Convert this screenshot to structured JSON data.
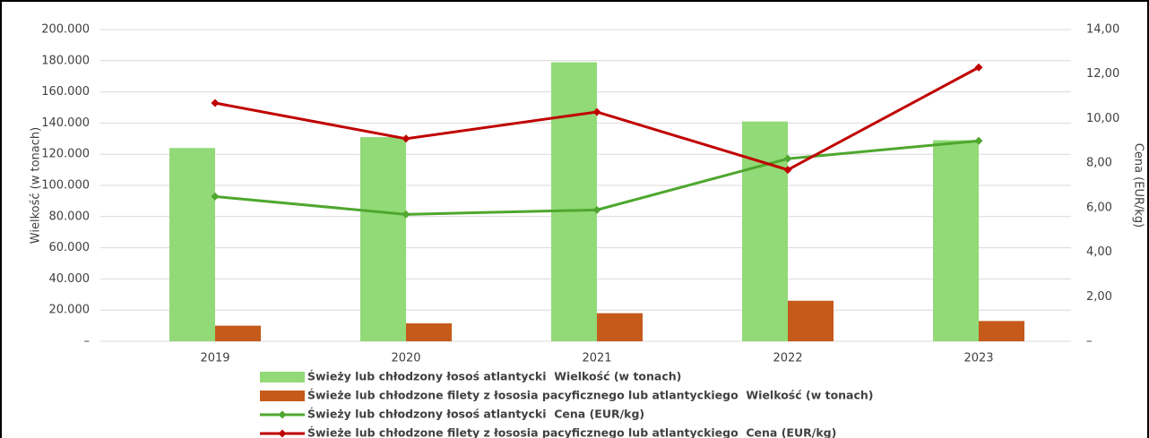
{
  "chart_data": {
    "type": "combo",
    "categories": [
      "2019",
      "2020",
      "2021",
      "2022",
      "2023"
    ],
    "series": [
      {
        "name": "Świeży lub chłodzony łosoś atlantycki  Wielkość (w tonach)",
        "type": "bar",
        "color": "#92d977",
        "values": [
          124000,
          131000,
          179000,
          141000,
          129000
        ]
      },
      {
        "name": "Świeże lub chłodzone filety z łososia pacyficznego lub atlantyckiego  Wielkość (w tonach)",
        "type": "bar",
        "color": "#c55a1a",
        "values": [
          10000,
          11500,
          18000,
          26000,
          13000
        ]
      },
      {
        "name": "Świeży lub chłodzony łosoś atlantycki  Cena (EUR/kg)",
        "type": "line",
        "axis": "y2",
        "color": "#4ea72e",
        "values": [
          6.5,
          5.7,
          5.9,
          8.2,
          9.0
        ]
      },
      {
        "name": "Świeże lub chłodzone filety z łososia pacyficznego lub atlantyckiego  Cena (EUR/kg)",
        "type": "line",
        "axis": "y2",
        "color": "#c00000",
        "values": [
          10.7,
          9.1,
          10.3,
          7.7,
          12.3
        ]
      }
    ],
    "ylabel": "Wielkość (w tonach)",
    "y2label": "Cena (EUR/kg)",
    "ylim": [
      0,
      200000
    ],
    "yticks": [
      {
        "value": 0,
        "label": "–"
      },
      {
        "value": 20000,
        "label": "20.000"
      },
      {
        "value": 40000,
        "label": "40.000"
      },
      {
        "value": 60000,
        "label": "60.000"
      },
      {
        "value": 80000,
        "label": "80.000"
      },
      {
        "value": 100000,
        "label": "100.000"
      },
      {
        "value": 120000,
        "label": "120.000"
      },
      {
        "value": 140000,
        "label": "140.000"
      },
      {
        "value": 160000,
        "label": "160.000"
      },
      {
        "value": 180000,
        "label": "180.000"
      },
      {
        "value": 200000,
        "label": "200.000"
      }
    ],
    "y2lim": [
      0,
      14
    ],
    "y2ticks": [
      {
        "value": 0,
        "label": "–"
      },
      {
        "value": 2,
        "label": "2,00"
      },
      {
        "value": 4,
        "label": "4,00"
      },
      {
        "value": 6,
        "label": "6,00"
      },
      {
        "value": 8,
        "label": "8,00"
      },
      {
        "value": 10,
        "label": "10,00"
      },
      {
        "value": 12,
        "label": "12,00"
      },
      {
        "value": 14,
        "label": "14,00"
      }
    ],
    "grid": true,
    "legend": "bottom"
  }
}
